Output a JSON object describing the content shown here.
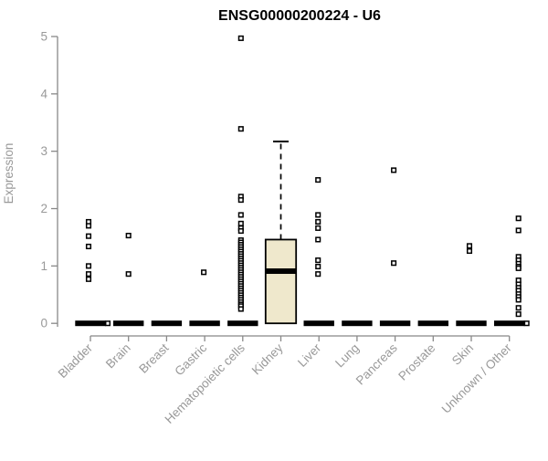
{
  "chart_data": {
    "type": "boxplot",
    "title": "ENSG00000200224 - U6",
    "ylabel": "Expression",
    "xlabel": "",
    "ylim": [
      0,
      5
    ],
    "yticks": [
      0,
      1,
      2,
      3,
      4,
      5
    ],
    "grid": false,
    "legend": "none",
    "colors": {
      "box_fill": "#EFE8CC",
      "box_stroke": "#000000",
      "axis_line": "#888888",
      "axis_text": "#999999",
      "title_text": "#000000",
      "outlier_stroke": "#000000",
      "outlier_fill": "#ffffff"
    },
    "categories": [
      "Bladder",
      "Brain",
      "Breast",
      "Gastric",
      "Hematopoietic cells",
      "Kidney",
      "Liver",
      "Lung",
      "Pancreas",
      "Prostate",
      "Skin",
      "Unknown / Other"
    ],
    "series": [
      {
        "category": "Bladder",
        "box": {
          "q1": 0,
          "median": 0,
          "q3": 0,
          "whisker_low": 0,
          "whisker_high": 0
        },
        "outliers": [
          1.77,
          1.7,
          1.52,
          1.34,
          1.0,
          0.86,
          0.77,
          0.0
        ]
      },
      {
        "category": "Brain",
        "box": {
          "q1": 0,
          "median": 0,
          "q3": 0,
          "whisker_low": 0,
          "whisker_high": 0
        },
        "outliers": [
          1.53,
          0.86
        ]
      },
      {
        "category": "Breast",
        "box": {
          "q1": 0,
          "median": 0,
          "q3": 0,
          "whisker_low": 0,
          "whisker_high": 0
        },
        "outliers": []
      },
      {
        "category": "Gastric",
        "box": {
          "q1": 0,
          "median": 0,
          "q3": 0,
          "whisker_low": 0,
          "whisker_high": 0
        },
        "outliers": [
          0.89
        ]
      },
      {
        "category": "Hematopoietic cells",
        "box": {
          "q1": 0,
          "median": 0,
          "q3": 0,
          "whisker_low": 0,
          "whisker_high": 0
        },
        "outliers": [
          4.97,
          3.39,
          2.21,
          2.15,
          1.89,
          1.74,
          1.66,
          1.61,
          1.45,
          1.41,
          1.37,
          1.33,
          1.29,
          1.25,
          1.21,
          1.17,
          1.13,
          1.09,
          1.05,
          1.01,
          0.97,
          0.93,
          0.89,
          0.85,
          0.81,
          0.77,
          0.73,
          0.69,
          0.65,
          0.61,
          0.57,
          0.53,
          0.49,
          0.45,
          0.41,
          0.37,
          0.33,
          0.3,
          0.25
        ]
      },
      {
        "category": "Kidney",
        "box": {
          "q1": 0,
          "median": 0.91,
          "q3": 1.46,
          "whisker_low": 0,
          "whisker_high": 3.17
        },
        "outliers": []
      },
      {
        "category": "Liver",
        "box": {
          "q1": 0,
          "median": 0,
          "q3": 0,
          "whisker_low": 0,
          "whisker_high": 0
        },
        "outliers": [
          2.5,
          1.89,
          1.77,
          1.66,
          1.46,
          1.1,
          0.99,
          0.86
        ]
      },
      {
        "category": "Lung",
        "box": {
          "q1": 0,
          "median": 0,
          "q3": 0,
          "whisker_low": 0,
          "whisker_high": 0
        },
        "outliers": []
      },
      {
        "category": "Pancreas",
        "box": {
          "q1": 0,
          "median": 0,
          "q3": 0,
          "whisker_low": 0,
          "whisker_high": 0
        },
        "outliers": [
          2.67,
          1.05
        ]
      },
      {
        "category": "Prostate",
        "box": {
          "q1": 0,
          "median": 0,
          "q3": 0,
          "whisker_low": 0,
          "whisker_high": 0
        },
        "outliers": []
      },
      {
        "category": "Skin",
        "box": {
          "q1": 0,
          "median": 0,
          "q3": 0,
          "whisker_low": 0,
          "whisker_high": 0
        },
        "outliers": [
          1.35,
          1.26
        ]
      },
      {
        "category": "Unknown / Other",
        "box": {
          "q1": 0,
          "median": 0,
          "q3": 0,
          "whisker_low": 0,
          "whisker_high": 0
        },
        "outliers": [
          1.83,
          1.62,
          1.16,
          1.1,
          1.04,
          0.99,
          0.96,
          0.75,
          0.68,
          0.62,
          0.57,
          0.51,
          0.46,
          0.41,
          0.27,
          0.16,
          0.0
        ]
      }
    ]
  }
}
